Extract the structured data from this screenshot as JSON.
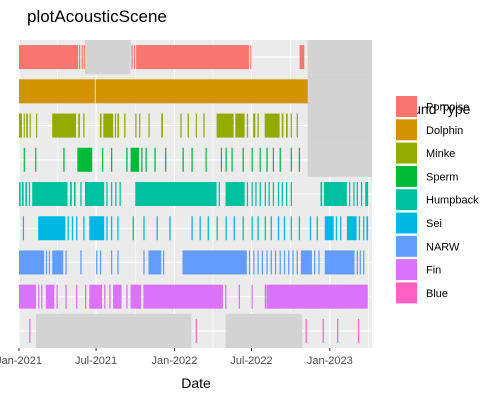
{
  "chart_data": {
    "type": "timeline",
    "title": "plotAcousticScene",
    "xlabel": "Date",
    "ylabel": "",
    "xlim": [
      "2021-01-01",
      "2023-04-10"
    ],
    "x_ticks": [
      {
        "date": "2021-01-01",
        "label": "Jan-2021"
      },
      {
        "date": "2021-07-01",
        "label": "Jul-2021"
      },
      {
        "date": "2022-01-01",
        "label": "Jan-2022"
      },
      {
        "date": "2022-07-01",
        "label": "Jul-2022"
      },
      {
        "date": "2023-01-01",
        "label": "Jan-2023"
      }
    ],
    "grid": true,
    "legend_title": "Sound Type",
    "legend_position": "right",
    "series": [
      {
        "name": "Porpoise",
        "color": "#F8766D",
        "effort_gaps": [
          [
            "2021-06-05",
            "2021-09-20"
          ],
          [
            "2022-11-10",
            "2023-04-10"
          ]
        ],
        "intervals": [
          [
            "2021-01-01",
            "2021-05-20"
          ],
          [
            "2021-05-22",
            "2021-05-24"
          ],
          [
            "2021-05-28",
            "2021-05-30"
          ],
          [
            "2021-06-02",
            "2021-06-04"
          ],
          [
            "2021-09-22",
            "2021-09-25"
          ],
          [
            "2021-09-28",
            "2021-09-30"
          ],
          [
            "2021-10-03",
            "2022-06-25"
          ],
          [
            "2022-06-28",
            "2022-06-30"
          ],
          [
            "2022-10-22",
            "2022-11-02"
          ]
        ]
      },
      {
        "name": "Dolphin",
        "color": "#D39200",
        "effort_gaps": [
          [
            "2022-11-10",
            "2023-04-10"
          ]
        ],
        "intervals": [
          [
            "2021-01-01",
            "2021-06-28"
          ],
          [
            "2021-06-30",
            "2022-11-10"
          ]
        ]
      },
      {
        "name": "Minke",
        "color": "#93AA00",
        "effort_gaps": [
          [
            "2022-11-10",
            "2023-04-10"
          ]
        ],
        "intervals": [
          [
            "2021-01-01",
            "2021-01-08"
          ],
          [
            "2021-01-12",
            "2021-01-14"
          ],
          [
            "2021-01-18",
            "2021-01-22"
          ],
          [
            "2021-01-26",
            "2021-01-28"
          ],
          [
            "2021-02-10",
            "2021-02-12"
          ],
          [
            "2021-03-20",
            "2021-05-15"
          ],
          [
            "2021-05-20",
            "2021-05-24"
          ],
          [
            "2021-06-01",
            "2021-06-04"
          ],
          [
            "2021-07-10",
            "2021-07-14"
          ],
          [
            "2021-07-18",
            "2021-08-10"
          ],
          [
            "2021-08-14",
            "2021-08-16"
          ],
          [
            "2021-08-20",
            "2021-08-24"
          ],
          [
            "2021-09-05",
            "2021-09-08"
          ],
          [
            "2021-10-01",
            "2021-10-04"
          ],
          [
            "2021-10-10",
            "2021-10-12"
          ],
          [
            "2021-11-01",
            "2021-11-03"
          ],
          [
            "2021-12-01",
            "2021-12-05"
          ],
          [
            "2022-01-15",
            "2022-01-18"
          ],
          [
            "2022-02-01",
            "2022-02-04"
          ],
          [
            "2022-02-20",
            "2022-02-22"
          ],
          [
            "2022-03-10",
            "2022-03-13"
          ],
          [
            "2022-04-10",
            "2022-05-20"
          ],
          [
            "2022-05-24",
            "2022-06-15"
          ],
          [
            "2022-06-20",
            "2022-06-23"
          ],
          [
            "2022-07-05",
            "2022-07-10"
          ],
          [
            "2022-07-15",
            "2022-07-18"
          ],
          [
            "2022-08-01",
            "2022-09-05"
          ],
          [
            "2022-09-10",
            "2022-09-14"
          ],
          [
            "2022-09-20",
            "2022-09-24"
          ],
          [
            "2022-10-01",
            "2022-10-03"
          ],
          [
            "2022-10-15",
            "2022-10-18"
          ]
        ]
      },
      {
        "name": "Sperm",
        "color": "#00BA38",
        "effort_gaps": [
          [
            "2022-11-10",
            "2023-04-10"
          ]
        ],
        "intervals": [
          [
            "2021-01-12",
            "2021-01-14"
          ],
          [
            "2021-02-08",
            "2021-02-10"
          ],
          [
            "2021-04-15",
            "2021-04-18"
          ],
          [
            "2021-05-18",
            "2021-06-22"
          ],
          [
            "2021-07-15",
            "2021-07-17"
          ],
          [
            "2021-08-05",
            "2021-08-08"
          ],
          [
            "2021-09-10",
            "2021-09-13"
          ],
          [
            "2021-09-20",
            "2021-10-10"
          ],
          [
            "2021-10-15",
            "2021-10-18"
          ],
          [
            "2021-10-25",
            "2021-10-28"
          ],
          [
            "2021-11-15",
            "2021-11-18"
          ],
          [
            "2021-12-10",
            "2021-12-13"
          ],
          [
            "2022-01-20",
            "2022-01-23"
          ],
          [
            "2022-02-10",
            "2022-02-13"
          ],
          [
            "2022-03-15",
            "2022-03-17"
          ],
          [
            "2022-04-20",
            "2022-04-22"
          ],
          [
            "2022-05-01",
            "2022-05-03"
          ],
          [
            "2022-05-15",
            "2022-05-17"
          ],
          [
            "2022-06-10",
            "2022-06-13"
          ],
          [
            "2022-07-01",
            "2022-07-04"
          ],
          [
            "2022-07-20",
            "2022-07-22"
          ],
          [
            "2022-08-05",
            "2022-08-08"
          ],
          [
            "2022-08-20",
            "2022-08-22"
          ],
          [
            "2022-09-05",
            "2022-09-08"
          ],
          [
            "2022-10-01",
            "2022-10-04"
          ],
          [
            "2022-10-20",
            "2022-10-23"
          ]
        ]
      },
      {
        "name": "Humpback",
        "color": "#00C19F",
        "effort_gaps": [],
        "intervals": [
          [
            "2021-01-01",
            "2021-01-05"
          ],
          [
            "2021-01-08",
            "2021-01-12"
          ],
          [
            "2021-01-16",
            "2021-01-20"
          ],
          [
            "2021-01-24",
            "2021-01-27"
          ],
          [
            "2021-02-01",
            "2021-04-25"
          ],
          [
            "2021-05-01",
            "2021-05-05"
          ],
          [
            "2021-05-10",
            "2021-05-14"
          ],
          [
            "2021-05-25",
            "2021-05-28"
          ],
          [
            "2021-06-05",
            "2021-07-20"
          ],
          [
            "2021-07-25",
            "2021-07-28"
          ],
          [
            "2021-08-05",
            "2021-08-08"
          ],
          [
            "2021-08-15",
            "2021-08-18"
          ],
          [
            "2021-08-25",
            "2021-08-28"
          ],
          [
            "2021-10-01",
            "2022-04-10"
          ],
          [
            "2022-04-15",
            "2022-04-18"
          ],
          [
            "2022-05-01",
            "2022-06-15"
          ],
          [
            "2022-06-20",
            "2022-06-23"
          ],
          [
            "2022-07-01",
            "2022-07-04"
          ],
          [
            "2022-07-10",
            "2022-07-13"
          ],
          [
            "2022-07-20",
            "2022-07-23"
          ],
          [
            "2022-08-01",
            "2022-08-04"
          ],
          [
            "2022-08-10",
            "2022-08-13"
          ],
          [
            "2022-08-20",
            "2022-08-23"
          ],
          [
            "2022-09-01",
            "2022-09-04"
          ],
          [
            "2022-09-10",
            "2022-09-13"
          ],
          [
            "2022-09-20",
            "2022-09-23"
          ],
          [
            "2022-10-01",
            "2022-10-04"
          ],
          [
            "2022-12-10",
            "2022-12-14"
          ],
          [
            "2022-12-18",
            "2023-02-10"
          ],
          [
            "2023-02-15",
            "2023-02-18"
          ],
          [
            "2023-02-25",
            "2023-02-28"
          ],
          [
            "2023-03-05",
            "2023-03-08"
          ],
          [
            "2023-03-15",
            "2023-03-18"
          ],
          [
            "2023-03-25",
            "2023-04-01"
          ]
        ]
      },
      {
        "name": "Sei",
        "color": "#00B9E3",
        "effort_gaps": [],
        "intervals": [
          [
            "2021-01-10",
            "2021-01-12"
          ],
          [
            "2021-02-15",
            "2021-04-20"
          ],
          [
            "2021-04-25",
            "2021-04-28"
          ],
          [
            "2021-05-05",
            "2021-05-08"
          ],
          [
            "2021-05-15",
            "2021-05-18"
          ],
          [
            "2021-06-01",
            "2021-06-04"
          ],
          [
            "2021-06-15",
            "2021-07-20"
          ],
          [
            "2021-07-25",
            "2021-07-28"
          ],
          [
            "2021-08-05",
            "2021-08-08"
          ],
          [
            "2021-08-20",
            "2021-08-23"
          ],
          [
            "2021-09-25",
            "2021-09-28"
          ],
          [
            "2021-10-20",
            "2021-10-23"
          ],
          [
            "2021-11-20",
            "2021-11-23"
          ],
          [
            "2021-12-20",
            "2021-12-23"
          ],
          [
            "2022-02-10",
            "2022-02-13"
          ],
          [
            "2022-03-01",
            "2022-03-04"
          ],
          [
            "2022-03-20",
            "2022-03-23"
          ],
          [
            "2022-04-10",
            "2022-04-13"
          ],
          [
            "2022-05-01",
            "2022-05-04"
          ],
          [
            "2022-05-20",
            "2022-05-23"
          ],
          [
            "2022-06-10",
            "2022-06-13"
          ],
          [
            "2022-07-01",
            "2022-07-04"
          ],
          [
            "2022-07-15",
            "2022-07-18"
          ],
          [
            "2022-08-01",
            "2022-08-04"
          ],
          [
            "2022-08-15",
            "2022-08-18"
          ],
          [
            "2022-09-01",
            "2022-09-04"
          ],
          [
            "2022-09-15",
            "2022-09-18"
          ],
          [
            "2022-10-01",
            "2022-10-04"
          ],
          [
            "2022-10-20",
            "2022-10-23"
          ],
          [
            "2022-11-15",
            "2022-11-18"
          ],
          [
            "2022-12-01",
            "2022-12-04"
          ],
          [
            "2022-12-20",
            "2023-01-10"
          ],
          [
            "2023-01-15",
            "2023-01-18"
          ],
          [
            "2023-01-25",
            "2023-01-28"
          ],
          [
            "2023-02-10",
            "2023-03-05"
          ],
          [
            "2023-03-10",
            "2023-03-13"
          ],
          [
            "2023-03-20",
            "2023-03-23"
          ],
          [
            "2023-03-28",
            "2023-04-01"
          ]
        ]
      },
      {
        "name": "NARW",
        "color": "#619CFF",
        "effort_gaps": [],
        "intervals": [
          [
            "2021-01-01",
            "2021-03-01"
          ],
          [
            "2021-03-05",
            "2021-03-08"
          ],
          [
            "2021-03-12",
            "2021-03-15"
          ],
          [
            "2021-03-20",
            "2021-04-15"
          ],
          [
            "2021-04-20",
            "2021-04-23"
          ],
          [
            "2021-05-25",
            "2021-05-28"
          ],
          [
            "2021-07-01",
            "2021-07-04"
          ],
          [
            "2021-07-10",
            "2021-07-13"
          ],
          [
            "2021-08-05",
            "2021-08-08"
          ],
          [
            "2021-08-20",
            "2021-08-23"
          ],
          [
            "2021-10-20",
            "2021-10-23"
          ],
          [
            "2021-11-01",
            "2021-12-01"
          ],
          [
            "2021-12-05",
            "2021-12-08"
          ],
          [
            "2022-01-20",
            "2022-06-20"
          ],
          [
            "2022-06-25",
            "2022-06-28"
          ],
          [
            "2022-07-05",
            "2022-07-08"
          ],
          [
            "2022-07-15",
            "2022-07-18"
          ],
          [
            "2022-07-25",
            "2022-07-28"
          ],
          [
            "2022-08-05",
            "2022-08-08"
          ],
          [
            "2022-08-15",
            "2022-08-18"
          ],
          [
            "2022-08-25",
            "2022-08-28"
          ],
          [
            "2022-09-05",
            "2022-09-08"
          ],
          [
            "2022-09-15",
            "2022-09-18"
          ],
          [
            "2022-09-25",
            "2022-09-28"
          ],
          [
            "2022-10-05",
            "2022-10-08"
          ],
          [
            "2022-10-15",
            "2022-10-18"
          ],
          [
            "2022-10-25",
            "2022-11-20"
          ],
          [
            "2022-11-25",
            "2022-11-28"
          ],
          [
            "2022-12-05",
            "2022-12-08"
          ],
          [
            "2022-12-20",
            "2023-02-28"
          ],
          [
            "2023-03-05",
            "2023-03-08"
          ],
          [
            "2023-03-12",
            "2023-03-15"
          ],
          [
            "2023-03-20",
            "2023-03-23"
          ]
        ]
      },
      {
        "name": "Fin",
        "color": "#DB72FB",
        "effort_gaps": [],
        "intervals": [
          [
            "2021-01-01",
            "2021-02-10"
          ],
          [
            "2021-02-15",
            "2021-02-18"
          ],
          [
            "2021-02-22",
            "2021-02-25"
          ],
          [
            "2021-03-05",
            "2021-03-25"
          ],
          [
            "2021-03-30",
            "2021-04-02"
          ],
          [
            "2021-04-20",
            "2021-04-23"
          ],
          [
            "2021-05-15",
            "2021-05-18"
          ],
          [
            "2021-06-05",
            "2021-06-08"
          ],
          [
            "2021-06-15",
            "2021-07-15"
          ],
          [
            "2021-07-20",
            "2021-07-23"
          ],
          [
            "2021-08-01",
            "2021-08-04"
          ],
          [
            "2021-08-10",
            "2021-08-30"
          ],
          [
            "2021-09-10",
            "2021-09-13"
          ],
          [
            "2021-09-20",
            "2021-10-15"
          ],
          [
            "2021-10-20",
            "2022-04-25"
          ],
          [
            "2022-04-30",
            "2022-05-03"
          ],
          [
            "2022-06-01",
            "2022-06-04"
          ],
          [
            "2022-07-01",
            "2022-07-04"
          ],
          [
            "2022-08-01",
            "2022-08-04"
          ],
          [
            "2022-09-01",
            "2022-09-04"
          ],
          [
            "2022-10-01",
            "2022-10-04"
          ],
          [
            "2022-11-01",
            "2022-11-04"
          ],
          [
            "2022-12-01",
            "2022-12-04"
          ],
          [
            "2023-01-01",
            "2023-01-04"
          ],
          [
            "2023-02-01",
            "2023-02-04"
          ],
          [
            "2022-08-05",
            "2023-03-31"
          ]
        ]
      },
      {
        "name": "Blue",
        "color": "#FF61C3",
        "effort_gaps": [
          [
            "2021-02-10",
            "2022-02-10"
          ],
          [
            "2022-05-01",
            "2022-10-28"
          ]
        ],
        "intervals": [
          [
            "2021-01-25",
            "2021-01-27"
          ],
          [
            "2022-02-20",
            "2022-02-22"
          ],
          [
            "2022-11-05",
            "2022-11-07"
          ],
          [
            "2022-12-15",
            "2022-12-17"
          ],
          [
            "2023-01-18",
            "2023-01-20"
          ],
          [
            "2023-03-08",
            "2023-03-10"
          ]
        ]
      }
    ]
  }
}
